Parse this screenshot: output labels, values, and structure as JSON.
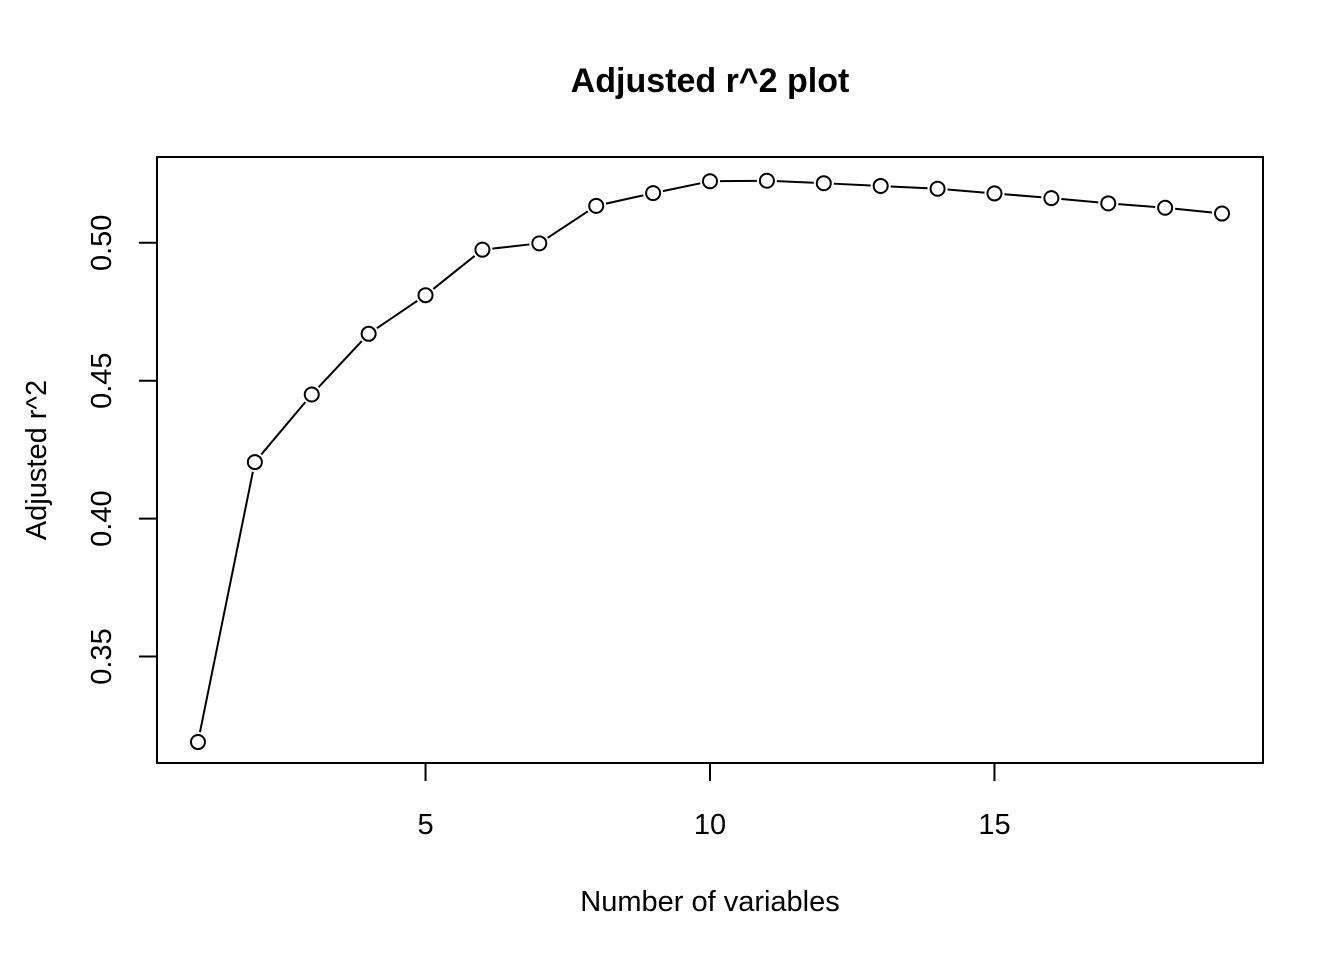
{
  "chart_data": {
    "type": "line",
    "title": "Adjusted r^2 plot",
    "xlabel": "Number of variables",
    "ylabel": "Adjusted r^2",
    "x": [
      1,
      2,
      3,
      4,
      5,
      6,
      7,
      8,
      9,
      10,
      11,
      12,
      13,
      14,
      15,
      16,
      17,
      18,
      19
    ],
    "y": [
      0.319,
      0.4205,
      0.445,
      0.467,
      0.481,
      0.4975,
      0.4998,
      0.5134,
      0.518,
      0.5223,
      0.5225,
      0.5216,
      0.5206,
      0.5196,
      0.5179,
      0.5162,
      0.5143,
      0.5127,
      0.5106
    ],
    "xlim": [
      0.28,
      19.72
    ],
    "ylim": [
      0.3114,
      0.5311
    ],
    "xticks": [
      5,
      10,
      15
    ],
    "yticks": [
      0.35,
      0.4,
      0.45,
      0.5
    ],
    "xtick_labels": [
      "5",
      "10",
      "15"
    ],
    "ytick_labels": [
      "0.35",
      "0.40",
      "0.45",
      "0.50"
    ],
    "marker": "open-circle",
    "grid": false,
    "colors": {
      "line": "#000000",
      "marker_fill": "#ffffff",
      "marker_stroke": "#000000"
    }
  }
}
